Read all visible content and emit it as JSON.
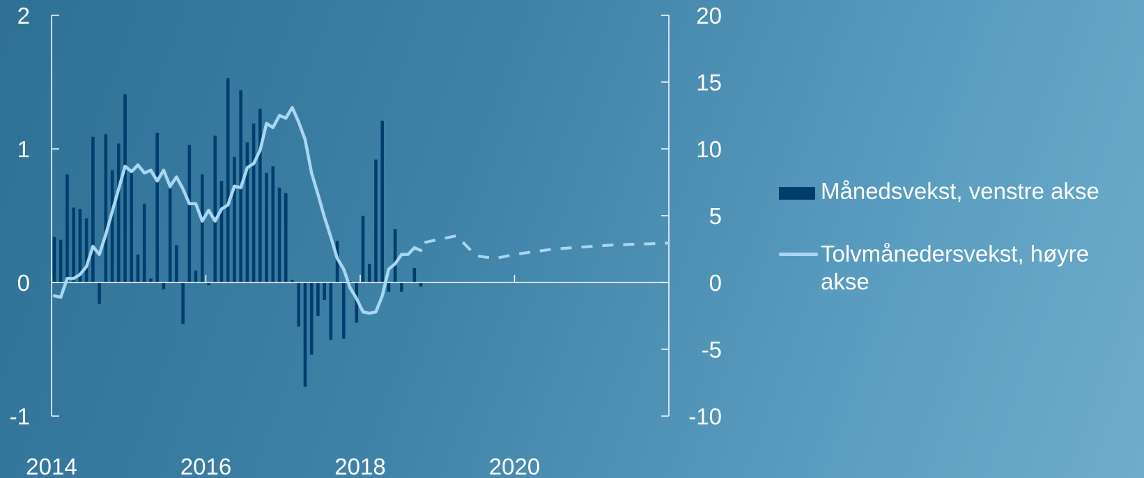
{
  "chart_data": {
    "type": "bar+line",
    "x_ticks": [
      "2014",
      "2016",
      "2018",
      "2020"
    ],
    "xlim": [
      2014.0,
      2022.0
    ],
    "left_axis": {
      "ylim": [
        -1,
        2
      ],
      "ticks": [
        "-1",
        "0",
        "1",
        "2"
      ]
    },
    "right_axis": {
      "ylim": [
        -10,
        20
      ],
      "ticks": [
        "-10",
        "-5",
        "0",
        "5",
        "10",
        "15",
        "20"
      ]
    },
    "legend_position": "right",
    "series": [
      {
        "name": "Månedsvekst, venstre akse",
        "type": "bar",
        "axis": "left",
        "color": "#003d6e",
        "x": [
          2014.0,
          2014.0833,
          2014.1667,
          2014.25,
          2014.3333,
          2014.4167,
          2014.5,
          2014.5833,
          2014.6667,
          2014.75,
          2014.8333,
          2014.9167,
          2015.0,
          2015.0833,
          2015.1667,
          2015.25,
          2015.3333,
          2015.4167,
          2015.5,
          2015.5833,
          2015.6667,
          2015.75,
          2015.8333,
          2015.9167,
          2016.0,
          2016.0833,
          2016.1667,
          2016.25,
          2016.3333,
          2016.4167,
          2016.5,
          2016.5833,
          2016.6667,
          2016.75,
          2016.8333,
          2016.9167,
          2017.0,
          2017.0833,
          2017.1667,
          2017.25,
          2017.3333,
          2017.4167,
          2017.5,
          2017.5833,
          2017.6667,
          2017.75,
          2017.8333,
          2017.9167,
          2018.0,
          2018.0833,
          2018.1667,
          2018.25,
          2018.3333,
          2018.4167,
          2018.5,
          2018.5833,
          2018.6667,
          2018.75
        ],
        "values": [
          0.34,
          0.32,
          0.81,
          0.56,
          0.55,
          0.48,
          1.09,
          -0.16,
          1.11,
          0.84,
          1.04,
          1.41,
          0.84,
          0.21,
          0.59,
          0.03,
          1.12,
          -0.05,
          0.7,
          0.28,
          -0.31,
          1.03,
          0.09,
          0.81,
          -0.02,
          1.1,
          0.76,
          1.53,
          0.94,
          1.44,
          1.05,
          1.19,
          1.3,
          0.82,
          0.87,
          0.71,
          0.67,
          0.02,
          -0.33,
          -0.78,
          -0.54,
          -0.25,
          -0.13,
          -0.43,
          0.31,
          -0.42,
          0.01,
          -0.3,
          0.5,
          0.14,
          0.92,
          1.21,
          -0.07,
          0.4,
          -0.07,
          0.0,
          0.11,
          -0.03
        ]
      },
      {
        "name": "Tolvmånedersvekst, høyre akse",
        "type": "line",
        "axis": "right",
        "color": "#a9d6f0",
        "x": [
          2014.0,
          2014.0833,
          2014.1667,
          2014.25,
          2014.3333,
          2014.4167,
          2014.5,
          2014.5833,
          2014.6667,
          2014.75,
          2014.8333,
          2014.9167,
          2015.0,
          2015.0833,
          2015.1667,
          2015.25,
          2015.3333,
          2015.4167,
          2015.5,
          2015.5833,
          2015.6667,
          2015.75,
          2015.8333,
          2015.9167,
          2016.0,
          2016.0833,
          2016.1667,
          2016.25,
          2016.3333,
          2016.4167,
          2016.5,
          2016.5833,
          2016.6667,
          2016.75,
          2016.8333,
          2016.9167,
          2017.0,
          2017.0833,
          2017.1667,
          2017.25,
          2017.3333,
          2017.4167,
          2017.5,
          2017.5833,
          2017.6667,
          2017.75,
          2017.8333,
          2017.9167,
          2018.0,
          2018.0833,
          2018.1667,
          2018.25,
          2018.3333,
          2018.4167,
          2018.5,
          2018.5833,
          2018.6667,
          2018.75
        ],
        "values": [
          -1.0,
          -1.1,
          0.3,
          0.3,
          0.6,
          1.2,
          2.7,
          2.1,
          3.6,
          5.3,
          7.0,
          8.7,
          8.3,
          8.8,
          8.2,
          8.4,
          7.6,
          8.4,
          7.2,
          7.9,
          7.0,
          5.9,
          5.9,
          4.6,
          5.4,
          4.6,
          5.5,
          5.8,
          7.2,
          7.1,
          8.6,
          8.9,
          9.9,
          11.9,
          11.6,
          12.5,
          12.3,
          13.1,
          12.0,
          10.7,
          8.2,
          6.6,
          4.9,
          3.4,
          1.8,
          1.0,
          -0.4,
          -1.2,
          -2.2,
          -2.3,
          -2.2,
          -1.0,
          1.0,
          1.4,
          2.1,
          2.1,
          2.6,
          2.4
        ]
      },
      {
        "name": "projection",
        "type": "line-dashed",
        "axis": "right",
        "color": "#a9d6f0",
        "x": [
          2018.8333,
          2019.25,
          2019.5,
          2019.75,
          2020.0,
          2020.25,
          2020.5,
          2020.75,
          2021.0,
          2021.25,
          2021.5,
          2021.75,
          2022.0
        ],
        "values": [
          3.0,
          3.5,
          2.0,
          1.8,
          2.1,
          2.3,
          2.5,
          2.6,
          2.7,
          2.8,
          2.85,
          2.9,
          2.95
        ]
      }
    ]
  }
}
